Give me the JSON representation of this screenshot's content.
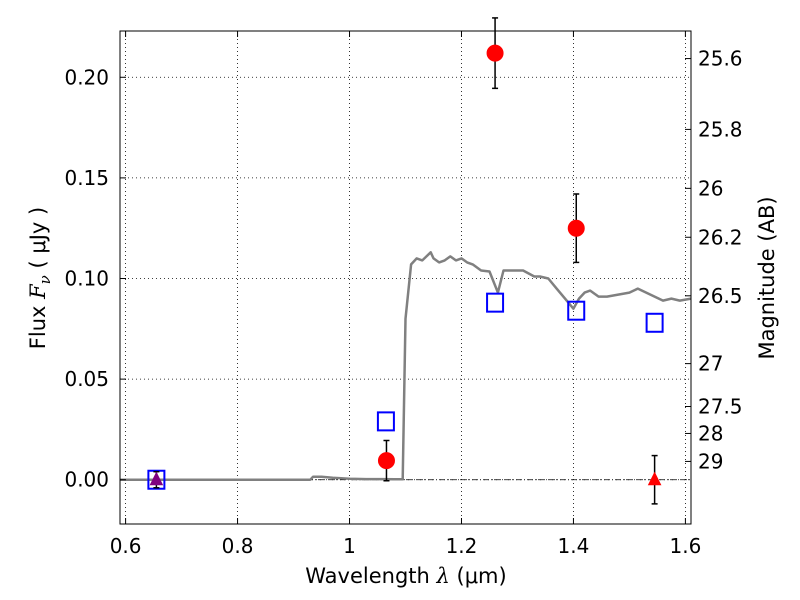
{
  "chart_data": {
    "type": "scatter",
    "xlabel_prefix": "Wavelength  ",
    "xlabel_symbol": "λ",
    "xlabel_suffix": " (μm)",
    "ylabel_prefix": "Flux  ",
    "ylabel_symbol": "F",
    "ylabel_subscript": "ν",
    "ylabel_suffix": "  ( μJy )",
    "y2label": "Magnitude (AB)",
    "xlim": [
      0.59,
      1.61
    ],
    "ylim": [
      -0.022,
      0.223
    ],
    "grid": true,
    "xticks": [
      {
        "value": 0.6,
        "label": "0.6"
      },
      {
        "value": 0.8,
        "label": "0.8"
      },
      {
        "value": 1.0,
        "label": "1"
      },
      {
        "value": 1.2,
        "label": "1.2"
      },
      {
        "value": 1.4,
        "label": "1.4"
      },
      {
        "value": 1.6,
        "label": "1.6"
      }
    ],
    "yticks": [
      {
        "value": 0.0,
        "label": "0.00"
      },
      {
        "value": 0.05,
        "label": "0.05"
      },
      {
        "value": 0.1,
        "label": "0.10"
      },
      {
        "value": 0.15,
        "label": "0.15"
      },
      {
        "value": 0.2,
        "label": "0.20"
      }
    ],
    "y2ticks": [
      {
        "label": "25.6",
        "flux": 0.2093
      },
      {
        "label": "25.8",
        "flux": 0.1741
      },
      {
        "label": "26",
        "flux": 0.1448
      },
      {
        "label": "26.2",
        "flux": 0.1205
      },
      {
        "label": "26.5",
        "flux": 0.0914
      },
      {
        "label": "27",
        "flux": 0.0577
      },
      {
        "label": "27.5",
        "flux": 0.0364
      },
      {
        "label": "28",
        "flux": 0.023
      },
      {
        "label": "29",
        "flux": 0.0091
      }
    ],
    "model_sed": {
      "color": "#808080",
      "x": [
        0.59,
        0.93,
        0.935,
        0.95,
        0.97,
        1.0,
        1.03,
        1.06,
        1.08,
        1.095,
        1.1,
        1.11,
        1.12,
        1.13,
        1.145,
        1.15,
        1.16,
        1.17,
        1.18,
        1.19,
        1.2,
        1.21,
        1.22,
        1.235,
        1.25,
        1.265,
        1.275,
        1.29,
        1.31,
        1.33,
        1.34,
        1.355,
        1.37,
        1.385,
        1.4,
        1.41,
        1.42,
        1.43,
        1.445,
        1.46,
        1.48,
        1.5,
        1.515,
        1.53,
        1.545,
        1.56,
        1.575,
        1.59,
        1.61
      ],
      "y": [
        0.0,
        0.0,
        0.0015,
        0.0015,
        0.001,
        0.0005,
        0.0003,
        0.0003,
        0.0002,
        0.0002,
        0.08,
        0.107,
        0.11,
        0.109,
        0.113,
        0.11,
        0.108,
        0.109,
        0.111,
        0.109,
        0.11,
        0.108,
        0.107,
        0.104,
        0.1035,
        0.093,
        0.104,
        0.104,
        0.104,
        0.101,
        0.101,
        0.1,
        0.095,
        0.09,
        0.085,
        0.09,
        0.093,
        0.094,
        0.091,
        0.091,
        0.092,
        0.093,
        0.095,
        0.093,
        0.091,
        0.089,
        0.09,
        0.089,
        0.09
      ]
    },
    "observed": {
      "color": "#ff0000",
      "points": [
        {
          "x": 1.066,
          "y": 0.0095,
          "err": 0.01
        },
        {
          "x": 1.26,
          "y": 0.212,
          "err": 0.0175
        },
        {
          "x": 1.405,
          "y": 0.125,
          "err": 0.017
        }
      ]
    },
    "upper_limits": {
      "color": "#ff0000",
      "points": [
        {
          "x": 1.545,
          "y": 0.0,
          "err": 0.012
        },
        {
          "x": 0.655,
          "y": 0.0,
          "err": 0.004,
          "color": "#800080"
        }
      ]
    },
    "model_photometry": {
      "color": "#0000ff",
      "points": [
        {
          "x": 0.655,
          "y": 0.0
        },
        {
          "x": 1.065,
          "y": 0.029
        },
        {
          "x": 1.26,
          "y": 0.088
        },
        {
          "x": 1.405,
          "y": 0.084
        },
        {
          "x": 1.545,
          "y": 0.078
        }
      ]
    }
  }
}
